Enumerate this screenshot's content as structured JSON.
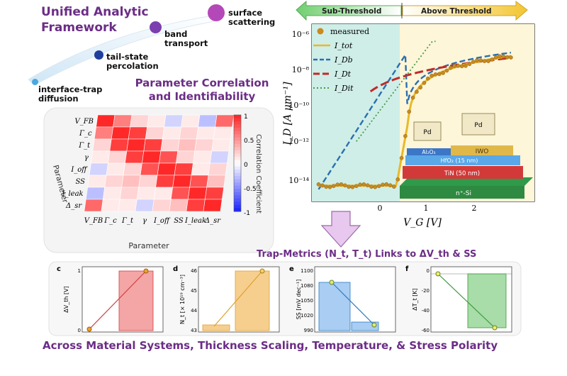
{
  "framework": {
    "title_line1": "Unified Analytic",
    "title_line2": "Framework",
    "stages": [
      {
        "line1": "interface-trap",
        "line2": "diffusion",
        "color": "#4aa8e0"
      },
      {
        "line1": "tail-state",
        "line2": "percolation",
        "color": "#1f3f9e"
      },
      {
        "line1": "band",
        "line2": "transport",
        "color": "#7b3fb0"
      },
      {
        "line1": "surface",
        "line2": "scattering",
        "color": "#b548b8"
      }
    ]
  },
  "correlation": {
    "title_line1": "Parameter Correlation",
    "title_line2": "and Identifiability",
    "row_labels": [
      "V_FB",
      "Γ_c",
      "Γ_t",
      "γ",
      "I_off",
      "SS",
      "I_leak",
      "Δ_sr"
    ],
    "col_labels": [
      "V_FB",
      "Γ_c",
      "Γ_t",
      "γ",
      "I_off",
      "SS",
      "I_leak",
      "Δ_sr"
    ],
    "axis_x_label": "Parameter",
    "axis_y_label": "Parameter",
    "colorbar_label": "Correlation Coefficient",
    "colorbar_ticks": [
      "1",
      "0.5",
      "0",
      "-0.5",
      "-1"
    ],
    "matrix": [
      [
        1.0,
        0.6,
        0.2,
        0.1,
        -0.2,
        0.1,
        -0.3,
        0.7
      ],
      [
        0.6,
        1.0,
        0.9,
        0.2,
        0.1,
        0.2,
        0.1,
        0.1
      ],
      [
        0.2,
        0.9,
        1.0,
        0.9,
        0.2,
        0.3,
        0.2,
        0.1
      ],
      [
        0.1,
        0.2,
        0.9,
        1.0,
        0.8,
        0.2,
        0.1,
        -0.2
      ],
      [
        -0.2,
        0.1,
        0.2,
        0.8,
        1.0,
        0.9,
        0.1,
        0.2
      ],
      [
        0.1,
        0.2,
        0.3,
        0.2,
        0.9,
        1.0,
        0.8,
        0.3
      ],
      [
        -0.3,
        0.1,
        0.2,
        0.1,
        0.1,
        0.8,
        1.0,
        0.9
      ],
      [
        0.7,
        0.1,
        0.1,
        -0.2,
        0.2,
        0.3,
        0.9,
        1.0
      ]
    ]
  },
  "iv_plot": {
    "sub_threshold_label": "Sub-Threshold",
    "above_threshold_label": "Above Threshold",
    "ylabel": "I_D [A μm⁻¹]",
    "xlabel": "V_G [V]",
    "y_ticks": [
      "10⁻⁶",
      "10⁻⁸",
      "10⁻¹⁰",
      "10⁻¹²",
      "10⁻¹⁴"
    ],
    "x_ticks": [
      "0",
      "1",
      "2"
    ],
    "legend": {
      "measured": "measured",
      "tot": "I_tot",
      "db": "I_Db",
      "dt": "I_Dt",
      "dit": "I_Dit"
    },
    "colors": {
      "measured": "#c98a1e",
      "tot": "#e8b92a",
      "db": "#2a6fb0",
      "dt": "#c02a2a",
      "dit": "#4a9a4a",
      "sub_bg": "#cfeee8",
      "above_bg": "#fdf6d8"
    },
    "device_layers": {
      "contact_left": "Pd",
      "contact_right": "Pd",
      "channel": "IWO",
      "insulator_top": "Al₂O₃",
      "insulator": "HfO₂ (15 nm)",
      "gate": "TiN (50 nm)",
      "substrate": "n⁺-Si"
    }
  },
  "trap_caption": "Trap-Metrics (N_t, T_t) Links to ΔV_th & SS",
  "panels": [
    {
      "letter": "c",
      "ylabel": "ΔV_th [V]",
      "ticks": [
        "1",
        "0"
      ],
      "color": "#f4a5a5",
      "line": "#d04040"
    },
    {
      "letter": "d",
      "ylabel": "N_t [× 10¹⁹ cm⁻³]",
      "ticks": [
        "46",
        "45",
        "44",
        "43"
      ],
      "color": "#f6cf8f",
      "line": "#e0a030"
    },
    {
      "letter": "e",
      "ylabel": "SS [mV dec⁻¹]",
      "ticks": [
        "1100",
        "1080",
        "1050",
        "1020",
        "990"
      ],
      "color": "#a9cdf3",
      "line": "#2a7ac0"
    },
    {
      "letter": "f",
      "ylabel": "ΔT_t [K]",
      "ticks": [
        "0",
        "-20",
        "-40",
        "-60"
      ],
      "color": "#a8dca8",
      "line": "#3a9a3a"
    }
  ],
  "bottom_caption": "Across Material Systems, Thickness Scaling, Temperature, & Stress Polarity"
}
